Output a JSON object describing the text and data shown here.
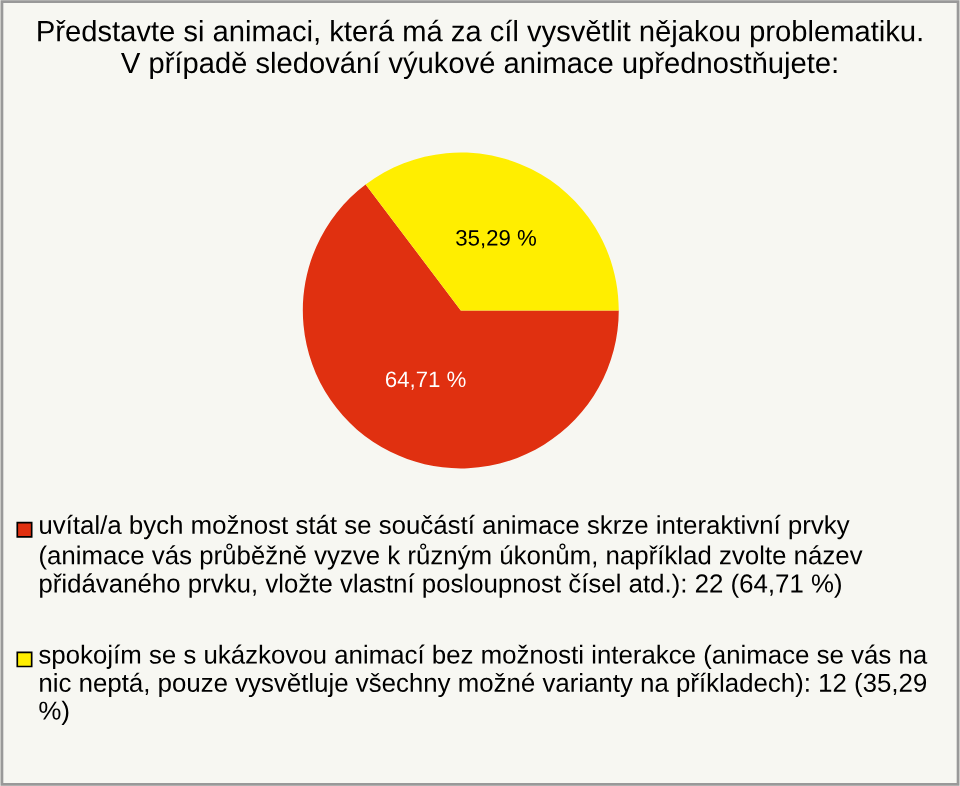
{
  "chart_data": {
    "type": "pie",
    "title": "Představte si animaci, která má za cíl vysvětlit nějakou problematiku.\nV případě sledování výukové animace upřednostňujete:",
    "categories": [
      "uvítal/a bych možnost stát se součástí animace skrze interaktivní prvky (animace vás průběžně vyzve k různým úkonům, například zvolte název přidávaného prvku, vložte vlastní posloupnost čísel atd.): 22 (64,71 %)",
      "spokojím se s ukázkovou animací bez možnosti interakce (animace se vás na nic neptá, pouze vysvětluje všechny možné varianty na příkladech): 12 (35,29 %)"
    ],
    "values": [
      64.71,
      35.29
    ],
    "colors": [
      "#e03010",
      "#ffee00"
    ],
    "value_labels": [
      "64,71 %",
      "35,29 %"
    ],
    "legend": "bottom"
  }
}
